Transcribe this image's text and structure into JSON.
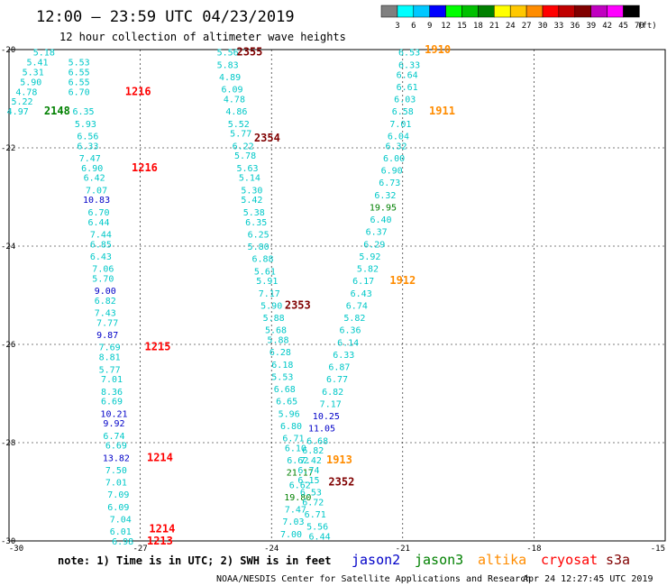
{
  "chart_data": {
    "type": "scatter",
    "title": "12:00 — 23:59 UTC 04/23/2019",
    "subtitle": "12 hour collection of altimeter wave heights",
    "xlim": [
      -30,
      -15
    ],
    "ylim": [
      -30,
      -20
    ],
    "x_ticks": [
      "-30",
      "-27",
      "-24",
      "-21",
      "-18",
      "-15"
    ],
    "y_ticks": [
      "-20",
      "-22",
      "-24",
      "-26",
      "-28",
      "-30"
    ],
    "grid": true,
    "color_scale": {
      "unit": "(ft)",
      "labels": [
        "3",
        "6",
        "9",
        "12",
        "15",
        "18",
        "21",
        "24",
        "27",
        "30",
        "33",
        "36",
        "39",
        "42",
        "45",
        "70"
      ],
      "colors": [
        "#808080",
        "#00ffff",
        "#00c8ff",
        "#0000ff",
        "#00ff00",
        "#00c000",
        "#008000",
        "#ffff00",
        "#ffc800",
        "#ff8c00",
        "#ff0000",
        "#c00000",
        "#800000",
        "#c000c0",
        "#ff00ff",
        "#000000"
      ]
    },
    "legend": [
      "jason2",
      "jason3",
      "altika",
      "cryosat",
      "s3a"
    ],
    "legend_colors": [
      "#0000c8",
      "#008000",
      "#ff8c00",
      "#ff0000",
      "#800000"
    ],
    "series": [
      {
        "values": [
          {
            "x": -29.2,
            "y": -20.05,
            "v": "5.18"
          },
          {
            "x": -29.35,
            "y": -20.25,
            "v": "5.41"
          },
          {
            "x": -28.4,
            "y": -20.25,
            "v": "5.53"
          },
          {
            "x": -29.45,
            "y": -20.45,
            "v": "5.31"
          },
          {
            "x": -28.4,
            "y": -20.45,
            "v": "6.55"
          },
          {
            "x": -29.5,
            "y": -20.65,
            "v": "5.90"
          },
          {
            "x": -28.4,
            "y": -20.65,
            "v": "6.55"
          },
          {
            "x": -29.6,
            "y": -20.85,
            "v": "4.78"
          },
          {
            "x": -28.4,
            "y": -20.85,
            "v": "6.70"
          },
          {
            "x": -29.7,
            "y": -21.05,
            "v": "5.22"
          },
          {
            "x": -29.8,
            "y": -21.25,
            "v": "4.97"
          },
          {
            "x": -28.3,
            "y": -21.25,
            "v": "6.35"
          },
          {
            "x": -28.25,
            "y": -21.5,
            "v": "5.93"
          },
          {
            "x": -28.2,
            "y": -21.75,
            "v": "6.56"
          },
          {
            "x": -28.2,
            "y": -21.95,
            "v": "6.33"
          },
          {
            "x": -28.15,
            "y": -22.2,
            "v": "7.47"
          },
          {
            "x": -28.1,
            "y": -22.4,
            "v": "6.90"
          },
          {
            "x": -28.05,
            "y": -22.6,
            "v": "6.42"
          },
          {
            "x": -28.0,
            "y": -22.85,
            "v": "7.07"
          },
          {
            "x": -28.0,
            "y": -23.05,
            "v": "10.83"
          },
          {
            "x": -27.95,
            "y": -23.3,
            "v": "6.70"
          },
          {
            "x": -27.95,
            "y": -23.5,
            "v": "6.44"
          },
          {
            "x": -27.9,
            "y": -23.75,
            "v": "7.44"
          },
          {
            "x": -27.9,
            "y": -23.95,
            "v": "6.85"
          },
          {
            "x": -27.9,
            "y": -24.2,
            "v": "6.43"
          },
          {
            "x": -27.85,
            "y": -24.45,
            "v": "7.06"
          },
          {
            "x": -27.85,
            "y": -24.65,
            "v": "5.70"
          },
          {
            "x": -27.8,
            "y": -24.9,
            "v": "9.00"
          },
          {
            "x": -27.8,
            "y": -25.1,
            "v": "6.82"
          },
          {
            "x": -27.8,
            "y": -25.35,
            "v": "7.43"
          },
          {
            "x": -27.75,
            "y": -25.55,
            "v": "7.77"
          },
          {
            "x": -27.75,
            "y": -25.8,
            "v": "9.87"
          },
          {
            "x": -27.7,
            "y": -26.05,
            "v": "7.69"
          },
          {
            "x": -27.7,
            "y": -26.25,
            "v": "8.81"
          },
          {
            "x": -27.7,
            "y": -26.5,
            "v": "5.77"
          },
          {
            "x": -27.65,
            "y": -26.7,
            "v": "7.01"
          },
          {
            "x": -27.65,
            "y": -26.95,
            "v": "8.36"
          },
          {
            "x": -27.65,
            "y": -27.15,
            "v": "6.69"
          },
          {
            "x": -27.6,
            "y": -27.4,
            "v": "10.21"
          },
          {
            "x": -27.6,
            "y": -27.6,
            "v": "9.92"
          },
          {
            "x": -27.6,
            "y": -27.85,
            "v": "6.74"
          },
          {
            "x": -27.55,
            "y": -28.05,
            "v": "6.69"
          },
          {
            "x": -27.55,
            "y": -28.3,
            "v": "13.82"
          },
          {
            "x": -27.55,
            "y": -28.55,
            "v": "7.50"
          },
          {
            "x": -27.55,
            "y": -28.8,
            "v": "7.01"
          },
          {
            "x": -27.5,
            "y": -29.05,
            "v": "7.09"
          },
          {
            "x": -27.5,
            "y": -29.3,
            "v": "6.09"
          },
          {
            "x": -27.45,
            "y": -29.55,
            "v": "7.04"
          },
          {
            "x": -27.45,
            "y": -29.8,
            "v": "6.01"
          },
          {
            "x": -27.4,
            "y": -30.0,
            "v": "6.98"
          },
          {
            "x": -25.0,
            "y": -20.05,
            "v": "5.56"
          },
          {
            "x": -25.0,
            "y": -20.3,
            "v": "5.83"
          },
          {
            "x": -24.95,
            "y": -20.55,
            "v": "4.89"
          },
          {
            "x": -24.9,
            "y": -20.8,
            "v": "6.09"
          },
          {
            "x": -24.85,
            "y": -21.0,
            "v": "4.78"
          },
          {
            "x": -24.8,
            "y": -21.25,
            "v": "4.86"
          },
          {
            "x": -24.75,
            "y": -21.5,
            "v": "5.52"
          },
          {
            "x": -24.7,
            "y": -21.7,
            "v": "5.77"
          },
          {
            "x": -24.65,
            "y": -21.95,
            "v": "6.22"
          },
          {
            "x": -24.6,
            "y": -22.15,
            "v": "5.78"
          },
          {
            "x": -24.55,
            "y": -22.4,
            "v": "5.63"
          },
          {
            "x": -24.5,
            "y": -22.6,
            "v": "5.14"
          },
          {
            "x": -24.45,
            "y": -22.85,
            "v": "5.30"
          },
          {
            "x": -24.45,
            "y": -23.05,
            "v": "5.42"
          },
          {
            "x": -24.4,
            "y": -23.3,
            "v": "5.38"
          },
          {
            "x": -24.35,
            "y": -23.5,
            "v": "6.35"
          },
          {
            "x": -24.3,
            "y": -23.75,
            "v": "6.25"
          },
          {
            "x": -24.3,
            "y": -24.0,
            "v": "5.80"
          },
          {
            "x": -24.2,
            "y": -24.25,
            "v": "6.88"
          },
          {
            "x": -24.15,
            "y": -24.5,
            "v": "5.61"
          },
          {
            "x": -24.1,
            "y": -24.7,
            "v": "5.91"
          },
          {
            "x": -24.05,
            "y": -24.95,
            "v": "7.17"
          },
          {
            "x": -24.0,
            "y": -25.2,
            "v": "5.90"
          },
          {
            "x": -23.95,
            "y": -25.45,
            "v": "5.88"
          },
          {
            "x": -23.9,
            "y": -25.7,
            "v": "5.68"
          },
          {
            "x": -23.85,
            "y": -25.9,
            "v": "5.88"
          },
          {
            "x": -23.8,
            "y": -26.15,
            "v": "6.28"
          },
          {
            "x": -23.75,
            "y": -26.4,
            "v": "6.18"
          },
          {
            "x": -23.75,
            "y": -26.65,
            "v": "5.53"
          },
          {
            "x": -23.7,
            "y": -26.9,
            "v": "6.68"
          },
          {
            "x": -23.65,
            "y": -27.15,
            "v": "6.65"
          },
          {
            "x": -23.6,
            "y": -27.4,
            "v": "5.96"
          },
          {
            "x": -23.55,
            "y": -27.65,
            "v": "6.80"
          },
          {
            "x": -23.5,
            "y": -27.9,
            "v": "6.71"
          },
          {
            "x": -23.45,
            "y": -28.1,
            "v": "6.10"
          },
          {
            "x": -23.4,
            "y": -28.35,
            "v": "6.62"
          },
          {
            "x": -23.35,
            "y": -28.6,
            "v": "21.17"
          },
          {
            "x": -23.35,
            "y": -28.85,
            "v": "6.62"
          },
          {
            "x": -23.4,
            "y": -29.1,
            "v": "19.80"
          },
          {
            "x": -23.45,
            "y": -29.35,
            "v": "7.47"
          },
          {
            "x": -23.5,
            "y": -29.6,
            "v": "7.03"
          },
          {
            "x": -23.55,
            "y": -29.85,
            "v": "7.00"
          },
          {
            "x": -20.85,
            "y": -20.05,
            "v": "6.53"
          },
          {
            "x": -20.85,
            "y": -20.3,
            "v": "6.33"
          },
          {
            "x": -20.9,
            "y": -20.5,
            "v": "6.64"
          },
          {
            "x": -20.9,
            "y": -20.75,
            "v": "6.61"
          },
          {
            "x": -20.95,
            "y": -21.0,
            "v": "6.03"
          },
          {
            "x": -21.0,
            "y": -21.25,
            "v": "6.58"
          },
          {
            "x": -21.05,
            "y": -21.5,
            "v": "7.01"
          },
          {
            "x": -21.1,
            "y": -21.75,
            "v": "6.04"
          },
          {
            "x": -21.15,
            "y": -21.95,
            "v": "6.32"
          },
          {
            "x": -21.2,
            "y": -22.2,
            "v": "6.00"
          },
          {
            "x": -21.25,
            "y": -22.45,
            "v": "6.90"
          },
          {
            "x": -21.3,
            "y": -22.7,
            "v": "6.73"
          },
          {
            "x": -21.4,
            "y": -22.95,
            "v": "6.32"
          },
          {
            "x": -21.45,
            "y": -23.2,
            "v": "19.95"
          },
          {
            "x": -21.5,
            "y": -23.45,
            "v": "6.40"
          },
          {
            "x": -21.6,
            "y": -23.7,
            "v": "6.37"
          },
          {
            "x": -21.65,
            "y": -23.95,
            "v": "6.29"
          },
          {
            "x": -21.75,
            "y": -24.2,
            "v": "5.92"
          },
          {
            "x": -21.8,
            "y": -24.45,
            "v": "5.82"
          },
          {
            "x": -21.9,
            "y": -24.7,
            "v": "6.17"
          },
          {
            "x": -21.95,
            "y": -24.95,
            "v": "6.43"
          },
          {
            "x": -22.05,
            "y": -25.2,
            "v": "6.74"
          },
          {
            "x": -22.1,
            "y": -25.45,
            "v": "5.82"
          },
          {
            "x": -22.2,
            "y": -25.7,
            "v": "6.36"
          },
          {
            "x": -22.25,
            "y": -25.95,
            "v": "6.14"
          },
          {
            "x": -22.35,
            "y": -26.2,
            "v": "6.33"
          },
          {
            "x": -22.45,
            "y": -26.45,
            "v": "6.87"
          },
          {
            "x": -22.5,
            "y": -26.7,
            "v": "6.77"
          },
          {
            "x": -22.6,
            "y": -26.95,
            "v": "6.82"
          },
          {
            "x": -22.65,
            "y": -27.2,
            "v": "7.17"
          },
          {
            "x": -22.75,
            "y": -27.45,
            "v": "10.25"
          },
          {
            "x": -22.85,
            "y": -27.7,
            "v": "11.05"
          },
          {
            "x": -22.95,
            "y": -27.95,
            "v": "6.68"
          },
          {
            "x": -23.05,
            "y": -28.15,
            "v": "6.82"
          },
          {
            "x": -23.1,
            "y": -28.35,
            "v": "7.42"
          },
          {
            "x": -23.15,
            "y": -28.55,
            "v": "6.74"
          },
          {
            "x": -23.15,
            "y": -28.75,
            "v": "6.15"
          },
          {
            "x": -23.1,
            "y": -29.0,
            "v": "6.53"
          },
          {
            "x": -23.05,
            "y": -29.2,
            "v": "6.72"
          },
          {
            "x": -23.0,
            "y": -29.45,
            "v": "6.71"
          },
          {
            "x": -22.95,
            "y": -29.7,
            "v": "5.56"
          },
          {
            "x": -22.9,
            "y": -29.9,
            "v": "6.44"
          }
        ]
      }
    ],
    "time_labels": [
      {
        "x": -28.9,
        "y": -21.25,
        "t": "2148",
        "color": "#008000"
      },
      {
        "x": -27.05,
        "y": -20.85,
        "t": "1216",
        "color": "#ff0000"
      },
      {
        "x": -26.9,
        "y": -22.4,
        "t": "1216",
        "color": "#ff0000"
      },
      {
        "x": -26.6,
        "y": -26.05,
        "t": "1215",
        "color": "#ff0000"
      },
      {
        "x": -26.55,
        "y": -28.3,
        "t": "1214",
        "color": "#ff0000"
      },
      {
        "x": -26.5,
        "y": -29.75,
        "t": "1214",
        "color": "#ff0000"
      },
      {
        "x": -26.55,
        "y": -30.0,
        "t": "1213",
        "color": "#ff0000"
      },
      {
        "x": -24.5,
        "y": -20.05,
        "t": "2355",
        "color": "#800000"
      },
      {
        "x": -24.1,
        "y": -21.8,
        "t": "2354",
        "color": "#800000"
      },
      {
        "x": -23.4,
        "y": -25.2,
        "t": "2353",
        "color": "#800000"
      },
      {
        "x": -22.45,
        "y": -28.35,
        "t": "1913",
        "color": "#ff8c00"
      },
      {
        "x": -22.4,
        "y": -28.8,
        "t": "2352",
        "color": "#800000"
      },
      {
        "x": -20.2,
        "y": -20.0,
        "t": "1910",
        "color": "#ff8c00"
      },
      {
        "x": -20.1,
        "y": -21.25,
        "t": "1911",
        "color": "#ff8c00"
      },
      {
        "x": -21.0,
        "y": -24.7,
        "t": "1912",
        "color": "#ff8c00"
      }
    ]
  },
  "footer": {
    "note": "note: 1) Time is in UTC; 2) SWH is in feet",
    "credit": "NOAA/NESDIS Center for Satellite Applications and Research",
    "timestamp": "Apr 24 12:27:45 UTC 2019"
  }
}
